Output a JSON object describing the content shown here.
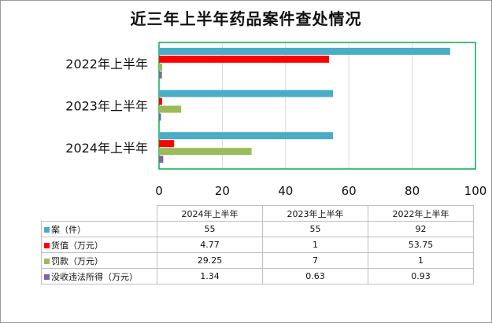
{
  "title": "近三年上半年药品案件查处情况",
  "chart_data": {
    "type": "bar",
    "orientation": "horizontal",
    "title": "近三年上半年药品案件查处情况",
    "categories": [
      "2024年上半年",
      "2023年上半年",
      "2022年上半年"
    ],
    "series": [
      {
        "name": "案（件）",
        "color": "#4BACC6",
        "values": [
          55,
          55,
          92
        ]
      },
      {
        "name": "货值（万元）",
        "color": "#FF0000",
        "values": [
          4.77,
          1,
          53.75
        ]
      },
      {
        "name": "罚款（万元）",
        "color": "#9BBB59",
        "values": [
          29.25,
          7,
          1
        ]
      },
      {
        "name": "没收违法所得（万元）",
        "color": "#8064A2",
        "values": [
          1.34,
          0.63,
          0.93
        ]
      }
    ],
    "xlim": [
      0,
      100
    ],
    "xticks": [
      0,
      20,
      40,
      60,
      80,
      100
    ],
    "grid": true,
    "plot_border_color": "#00B050",
    "legend": "data-table-below"
  },
  "table": {
    "columns": [
      "2024年上半年",
      "2023年上半年",
      "2022年上半年"
    ],
    "rows": [
      {
        "label": "案（件）",
        "color": "#4BACC6",
        "values": [
          "55",
          "55",
          "92"
        ]
      },
      {
        "label": "货值（万元）",
        "color": "#FF0000",
        "values": [
          "4.77",
          "1",
          "53.75"
        ]
      },
      {
        "label": "罚款（万元）",
        "color": "#9BBB59",
        "values": [
          "29.25",
          "7",
          "1"
        ]
      },
      {
        "label": "没收违法所得（万元）",
        "color": "#8064A2",
        "values": [
          "1.34",
          "0.63",
          "0.93"
        ]
      }
    ]
  }
}
